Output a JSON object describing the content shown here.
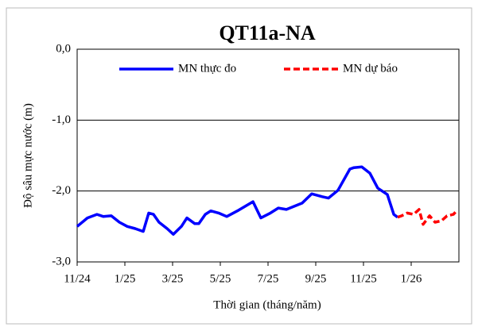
{
  "chart_data": {
    "type": "line",
    "title": "QT11a-NA",
    "y_label": "Độ sâu mực nước (m)",
    "x_label": "Thời gian (tháng/năm)",
    "xlim": [
      0,
      16
    ],
    "xticks": [
      {
        "value": 0,
        "label": "11/24"
      },
      {
        "value": 2,
        "label": "1/25"
      },
      {
        "value": 4,
        "label": "3/25"
      },
      {
        "value": 6,
        "label": "5/25"
      },
      {
        "value": 8,
        "label": "7/25"
      },
      {
        "value": 10,
        "label": "9/25"
      },
      {
        "value": 12,
        "label": "11/25"
      },
      {
        "value": 14,
        "label": "1/26"
      }
    ],
    "ylim": [
      -3,
      0
    ],
    "yticks": [
      {
        "value": 0,
        "label": "0,0"
      },
      {
        "value": -1,
        "label": "-1,0"
      },
      {
        "value": -2,
        "label": "-2,0"
      },
      {
        "value": -3,
        "label": "-3,0"
      }
    ],
    "grid": true,
    "legend": "top",
    "series": [
      {
        "name": "MN thực đo",
        "color": "#0000ff",
        "line_style": "solid",
        "x": [
          0,
          0.43,
          0.83,
          1.1,
          1.43,
          1.77,
          2.1,
          2.43,
          2.77,
          3.0,
          3.2,
          3.43,
          3.77,
          4.03,
          4.37,
          4.6,
          4.93,
          5.1,
          5.37,
          5.6,
          5.93,
          6.27,
          6.77,
          7.27,
          7.37,
          7.7,
          8.1,
          8.43,
          8.77,
          9.43,
          9.83,
          10.27,
          10.53,
          10.93,
          11.43,
          11.6,
          11.93,
          12.27,
          12.6,
          13.0,
          13.27,
          13.43
        ],
        "values": [
          -2.5,
          -2.38,
          -2.33,
          -2.36,
          -2.35,
          -2.44,
          -2.5,
          -2.53,
          -2.57,
          -2.31,
          -2.33,
          -2.44,
          -2.53,
          -2.61,
          -2.5,
          -2.38,
          -2.46,
          -2.46,
          -2.33,
          -2.28,
          -2.31,
          -2.36,
          -2.27,
          -2.17,
          -2.15,
          -2.38,
          -2.31,
          -2.24,
          -2.26,
          -2.17,
          -2.04,
          -2.08,
          -2.1,
          -1.99,
          -1.69,
          -1.67,
          -1.66,
          -1.75,
          -1.96,
          -2.05,
          -2.33,
          -2.37
        ]
      },
      {
        "name": "MN dự báo",
        "color": "#ff0000",
        "line_style": "dashed",
        "x": [
          13.43,
          13.6,
          13.83,
          14.1,
          14.33,
          14.5,
          14.77,
          15.0,
          15.27,
          15.5,
          15.77,
          15.93
        ],
        "values": [
          -2.37,
          -2.35,
          -2.31,
          -2.33,
          -2.26,
          -2.47,
          -2.35,
          -2.44,
          -2.42,
          -2.35,
          -2.33,
          -2.27
        ]
      }
    ]
  }
}
